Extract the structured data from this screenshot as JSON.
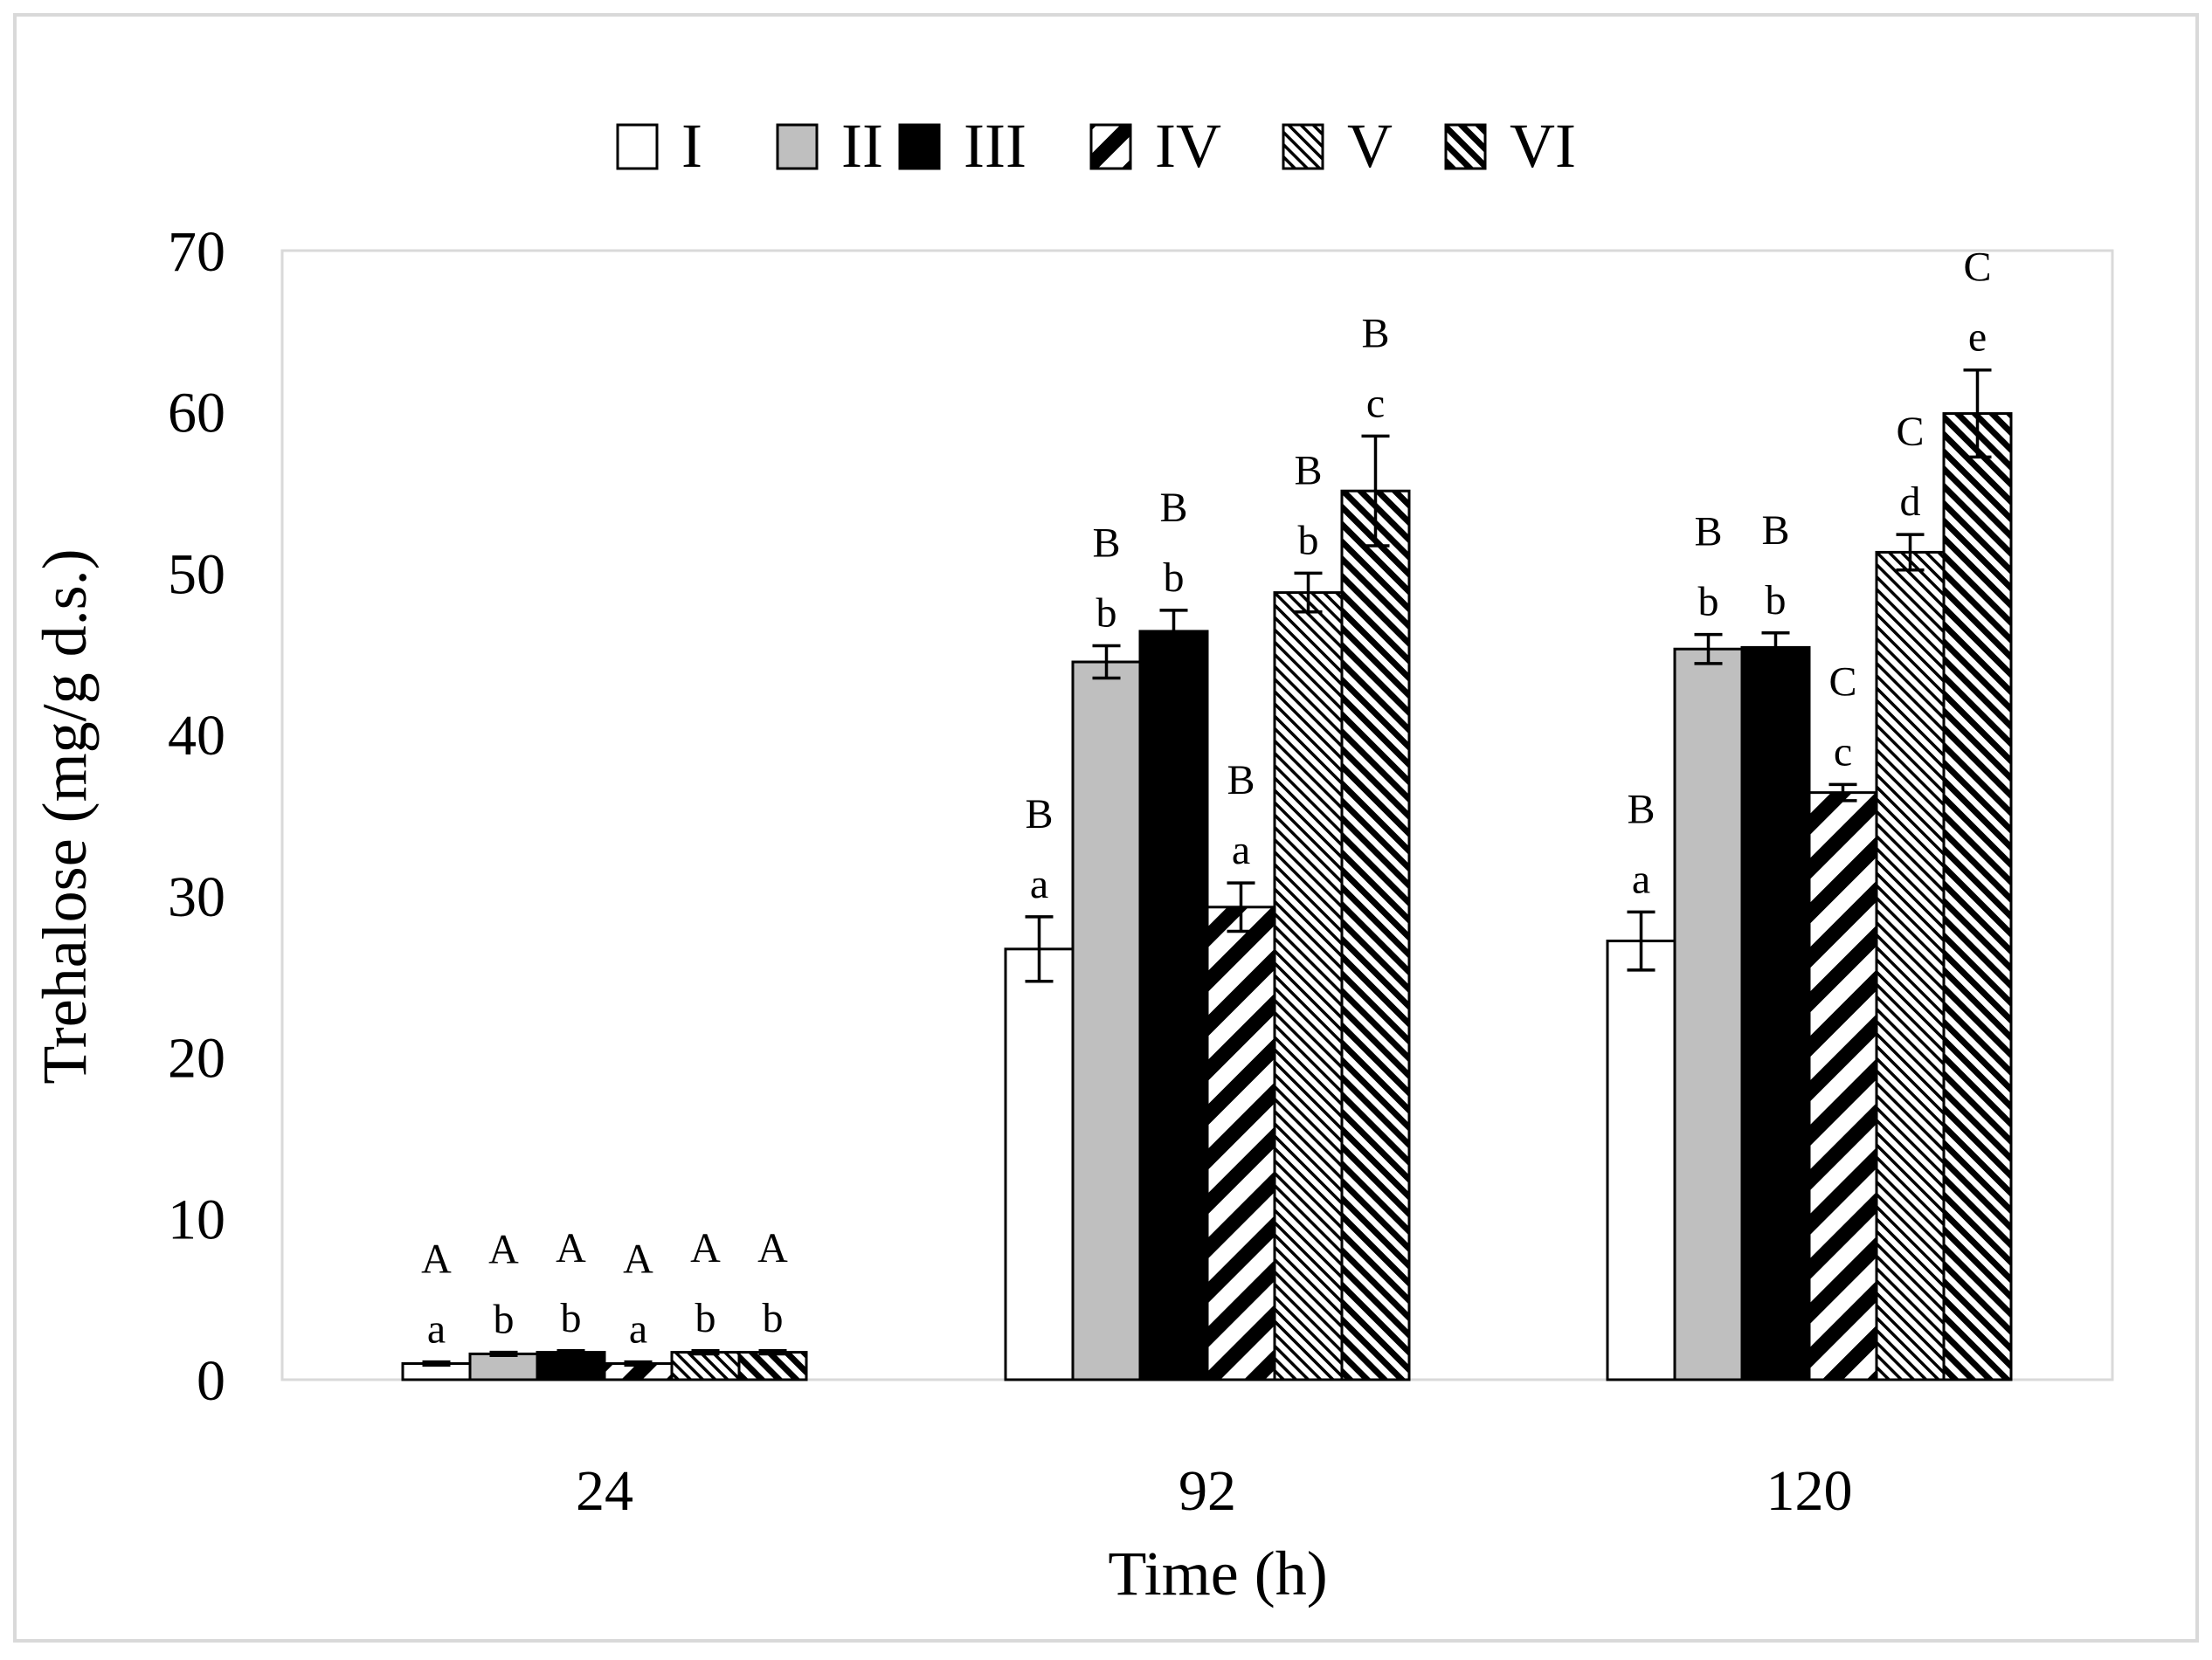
{
  "chart_data": {
    "type": "bar",
    "title": "",
    "xlabel": "Time (h)",
    "ylabel": "Trehalose (mg/g d.s.)",
    "ylim": [
      0,
      70
    ],
    "yticks": [
      0,
      10,
      20,
      30,
      40,
      50,
      60,
      70
    ],
    "grid": false,
    "legend_position": "top-center",
    "categories": [
      "24",
      "92",
      "120"
    ],
    "series": [
      {
        "name": "I",
        "pattern": "white",
        "values": [
          1.0,
          26.7,
          27.2
        ],
        "errors": [
          0.1,
          2.0,
          1.8
        ],
        "labels_upper": [
          "A",
          "B",
          "B"
        ],
        "labels_lower": [
          "a",
          "a",
          "a"
        ]
      },
      {
        "name": "II",
        "pattern": "gray",
        "values": [
          1.6,
          44.5,
          45.3
        ],
        "errors": [
          0.1,
          1.0,
          0.9
        ],
        "labels_upper": [
          "A",
          "B",
          "B"
        ],
        "labels_lower": [
          "b",
          "b",
          "b"
        ]
      },
      {
        "name": "III",
        "pattern": "black",
        "values": [
          1.7,
          46.4,
          45.4
        ],
        "errors": [
          0.1,
          1.3,
          0.9
        ],
        "labels_upper": [
          "A",
          "B",
          "B"
        ],
        "labels_lower": [
          "b",
          "b",
          "b"
        ]
      },
      {
        "name": "IV",
        "pattern": "wide-diag",
        "values": [
          1.0,
          29.3,
          36.4
        ],
        "errors": [
          0.1,
          1.5,
          0.5
        ],
        "labels_upper": [
          "A",
          "B",
          "C"
        ],
        "labels_lower": [
          "a",
          "a",
          "c"
        ]
      },
      {
        "name": "V",
        "pattern": "fine-diag",
        "values": [
          1.7,
          48.8,
          51.3
        ],
        "errors": [
          0.1,
          1.2,
          1.1
        ],
        "labels_upper": [
          "A",
          "B",
          "C"
        ],
        "labels_lower": [
          "b",
          "b",
          "d"
        ]
      },
      {
        "name": "VI",
        "pattern": "dense-diag",
        "values": [
          1.7,
          55.1,
          59.9
        ],
        "errors": [
          0.1,
          3.4,
          2.7
        ],
        "labels_upper": [
          "A",
          "B",
          "C"
        ],
        "labels_lower": [
          "b",
          "c",
          "e"
        ]
      }
    ],
    "colors": {
      "bar_stroke": "#000000",
      "gray_fill": "#bfbfbf",
      "black_fill": "#000000",
      "white_fill": "#ffffff",
      "frame": "#d9d9d9"
    }
  }
}
